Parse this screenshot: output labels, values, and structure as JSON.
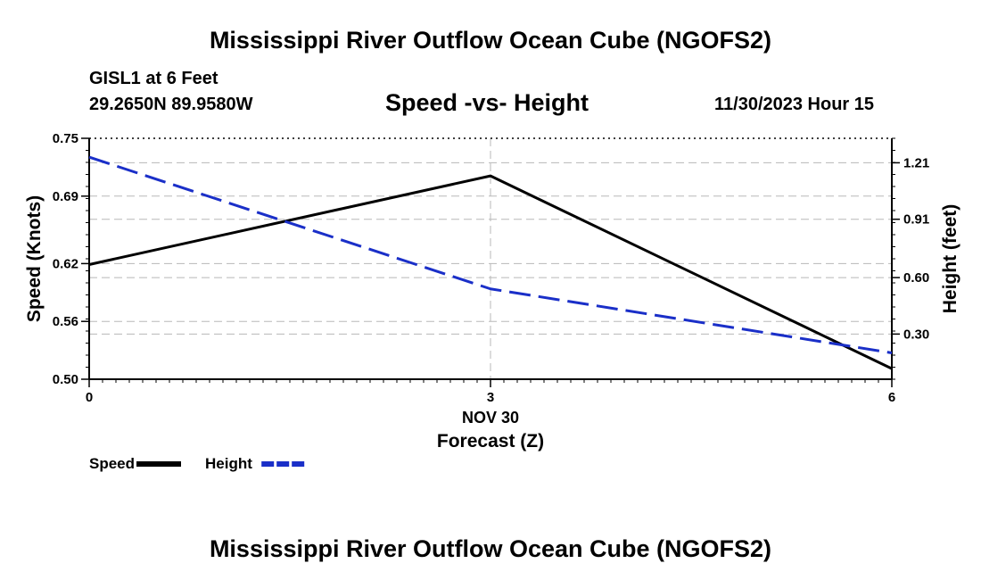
{
  "page": {
    "title": "Mississippi River Outflow Ocean Cube (NGOFS2)",
    "footer_title": "Mississippi River Outflow Ocean Cube (NGOFS2)",
    "station": "GISL1 at 6 Feet",
    "coordinates": "29.2650N  89.9580W",
    "subtitle": "Speed -vs- Height",
    "datetime": "11/30/2023 Hour 15"
  },
  "chart_data": {
    "type": "line",
    "title": "Speed -vs- Height",
    "x": [
      0,
      3,
      6
    ],
    "x_ticks": [
      0,
      3,
      6
    ],
    "x_tick_labels": [
      "0",
      "3",
      "6"
    ],
    "x_date_label": "NOV 30",
    "xlabel": "Forecast (Z)",
    "xlim": [
      0,
      6
    ],
    "ylabel_left": "Speed (Knots)",
    "ylim_left": [
      0.5,
      0.75
    ],
    "y_ticks_left": [
      "0.75",
      "0.69",
      "0.62",
      "0.56",
      "0.50"
    ],
    "ylabel_right": "Height (feet)",
    "ylim_right": [
      0.06,
      1.34
    ],
    "y_ticks_right": [
      "1.21",
      "0.91",
      "0.60",
      "0.30"
    ],
    "grid": true,
    "series": [
      {
        "name": "Speed",
        "axis": "left",
        "color": "#000000",
        "dash": "solid",
        "values": [
          0.619,
          0.711,
          0.511
        ]
      },
      {
        "name": "Height",
        "axis": "right",
        "color": "#1a2fc8",
        "dash": "dashed",
        "values": [
          1.24,
          0.54,
          0.2
        ]
      }
    ],
    "legend": [
      {
        "label": "Speed",
        "color": "#000000",
        "dash": "solid"
      },
      {
        "label": "Height",
        "color": "#1a2fc8",
        "dash": "dashed"
      }
    ]
  }
}
